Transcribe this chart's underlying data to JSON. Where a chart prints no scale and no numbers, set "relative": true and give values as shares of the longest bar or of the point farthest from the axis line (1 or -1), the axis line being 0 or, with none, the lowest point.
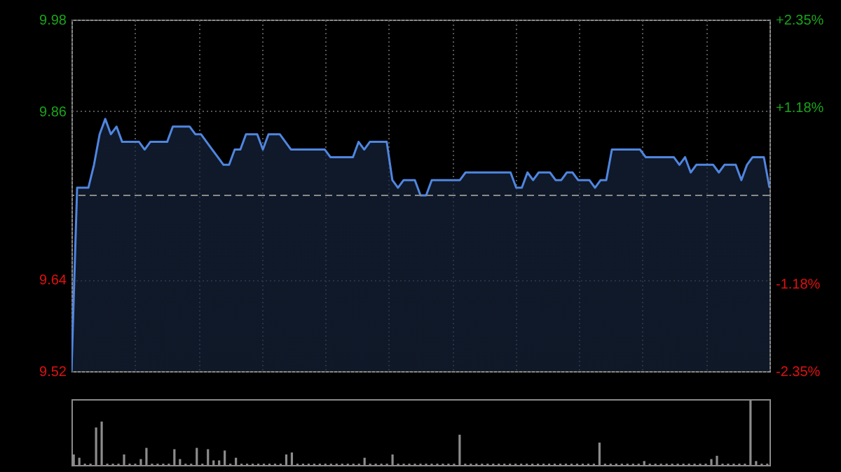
{
  "chart_data": [
    {
      "type": "area",
      "categories": [
        null,
        null,
        null,
        null,
        null,
        null,
        null,
        null,
        null,
        null,
        null,
        null,
        null,
        null,
        null,
        null,
        null,
        null,
        null,
        null,
        null,
        null,
        null,
        null,
        null,
        null,
        null,
        null,
        null,
        null,
        null,
        null,
        null,
        null,
        null,
        null,
        null,
        null,
        null,
        null,
        null,
        null,
        null,
        null,
        null,
        null,
        null,
        null,
        null,
        null,
        null,
        null,
        null,
        null,
        null,
        null,
        null,
        null,
        null,
        null,
        null,
        null,
        null,
        null,
        null,
        null,
        null,
        null,
        null,
        null,
        null,
        null,
        null,
        null,
        null,
        null,
        null,
        null,
        null,
        null,
        null,
        null,
        null,
        null,
        null,
        null,
        null,
        null,
        null,
        null,
        null,
        null,
        null,
        null,
        null,
        null,
        null,
        null,
        null,
        null,
        null,
        null,
        null,
        null,
        null,
        null,
        null,
        null,
        null,
        null,
        null,
        null,
        null,
        null,
        null,
        null,
        null,
        null,
        null,
        null,
        null,
        null,
        null,
        null,
        null
      ],
      "series": [
        {
          "color": "#4f86e0",
          "values": [
            9.52,
            9.76,
            9.76,
            9.76,
            9.79,
            9.83,
            9.85,
            9.83,
            9.84,
            9.82,
            9.82,
            9.82,
            9.82,
            9.81,
            9.82,
            9.82,
            9.82,
            9.82,
            9.84,
            9.84,
            9.84,
            9.84,
            9.83,
            9.83,
            9.82,
            9.81,
            9.8,
            9.79,
            9.79,
            9.81,
            9.81,
            9.83,
            9.83,
            9.83,
            9.81,
            9.83,
            9.83,
            9.83,
            9.82,
            9.81,
            9.81,
            9.81,
            9.81,
            9.81,
            9.81,
            9.81,
            9.8,
            9.8,
            9.8,
            9.8,
            9.8,
            9.82,
            9.81,
            9.82,
            9.82,
            9.82,
            9.82,
            9.77,
            9.76,
            9.77,
            9.77,
            9.77,
            9.75,
            9.75,
            9.77,
            9.77,
            9.77,
            9.77,
            9.77,
            9.77,
            9.78,
            9.78,
            9.78,
            9.78,
            9.78,
            9.78,
            9.78,
            9.78,
            9.78,
            9.76,
            9.76,
            9.78,
            9.77,
            9.78,
            9.78,
            9.78,
            9.77,
            9.77,
            9.78,
            9.78,
            9.77,
            9.77,
            9.77,
            9.76,
            9.77,
            9.77,
            9.81,
            9.81,
            9.81,
            9.81,
            9.81,
            9.81,
            9.8,
            9.8,
            9.8,
            9.8,
            9.8,
            9.8,
            9.79,
            9.8,
            9.78,
            9.79,
            9.79,
            9.79,
            9.79,
            9.78,
            9.79,
            9.79,
            9.79,
            9.77,
            9.79,
            9.8,
            9.8,
            9.8,
            9.76
          ]
        }
      ],
      "ylim": [
        9.52,
        9.98
      ],
      "yticks": [
        9.52,
        9.64,
        9.86,
        9.98
      ],
      "y2lim": [
        -2.35,
        2.35
      ],
      "y2ticks": [
        {
          "value": -2.35,
          "label": "-2.35%"
        },
        {
          "value": -1.18,
          "label": "-1.18%"
        },
        {
          "value": 1.18,
          "label": "+1.18%"
        },
        {
          "value": 2.35,
          "label": "+2.35%"
        }
      ],
      "ref_lines": [
        {
          "axis": "y2",
          "value": 0,
          "color": "#8a8a8a",
          "line_style": "dashed"
        }
      ],
      "grid": true,
      "tick_labels": "y"
    },
    {
      "type": "bar",
      "relative": true,
      "categories": [
        null,
        null,
        null,
        null,
        null,
        null,
        null,
        null,
        null,
        null,
        null,
        null,
        null,
        null,
        null,
        null,
        null,
        null,
        null,
        null,
        null,
        null,
        null,
        null,
        null,
        null,
        null,
        null,
        null,
        null,
        null,
        null,
        null,
        null,
        null,
        null,
        null,
        null,
        null,
        null,
        null,
        null,
        null,
        null,
        null,
        null,
        null,
        null,
        null,
        null,
        null,
        null,
        null,
        null,
        null,
        null,
        null,
        null,
        null,
        null,
        null,
        null,
        null,
        null,
        null,
        null,
        null,
        null,
        null,
        null,
        null,
        null,
        null,
        null,
        null,
        null,
        null,
        null,
        null,
        null,
        null,
        null,
        null,
        null,
        null,
        null,
        null,
        null,
        null,
        null,
        null,
        null,
        null,
        null,
        null,
        null,
        null,
        null,
        null,
        null,
        null,
        null,
        null,
        null,
        null,
        null,
        null,
        null,
        null,
        null,
        null,
        null,
        null,
        null,
        null,
        null,
        null,
        null,
        null,
        null,
        null,
        null,
        null,
        null,
        null
      ],
      "series": [
        {
          "color": "#8c8c8c",
          "values": [
            0.16,
            0.11,
            0.02,
            0.02,
            0.57,
            0.66,
            0.02,
            0.02,
            0.02,
            0.16,
            0.02,
            0.02,
            0.09,
            0.26,
            0.02,
            0.02,
            0.02,
            0.02,
            0.24,
            0.09,
            0.02,
            0.02,
            0.26,
            0.02,
            0.24,
            0.07,
            0.07,
            0.22,
            0.02,
            0.11,
            0.02,
            0.02,
            0.02,
            0.02,
            0.02,
            0.02,
            0.02,
            0.02,
            0.16,
            0.19,
            0.02,
            0.02,
            0.02,
            0.02,
            0.02,
            0.02,
            0.02,
            0.02,
            0.02,
            0.02,
            0.02,
            0.02,
            0.11,
            0.02,
            0.02,
            0.02,
            0.02,
            0.16,
            0.02,
            0.02,
            0.02,
            0.02,
            0.02,
            0.02,
            0.02,
            0.02,
            0.02,
            0.02,
            0.02,
            0.46,
            0.02,
            0.02,
            0.02,
            0.02,
            0.02,
            0.02,
            0.02,
            0.02,
            0.02,
            0.02,
            0.02,
            0.02,
            0.02,
            0.02,
            0.02,
            0.02,
            0.02,
            0.02,
            0.02,
            0.02,
            0.02,
            0.02,
            0.02,
            0.02,
            0.34,
            0.02,
            0.02,
            0.02,
            0.02,
            0.02,
            0.02,
            0.02,
            0.06,
            0.02,
            0.02,
            0.02,
            0.02,
            0.02,
            0.02,
            0.02,
            0.02,
            0.02,
            0.02,
            0.02,
            0.09,
            0.14,
            0.02,
            0.02,
            0.02,
            0.02,
            0.02,
            1,
            0.06,
            0.02,
            0.02
          ]
        }
      ]
    }
  ]
}
